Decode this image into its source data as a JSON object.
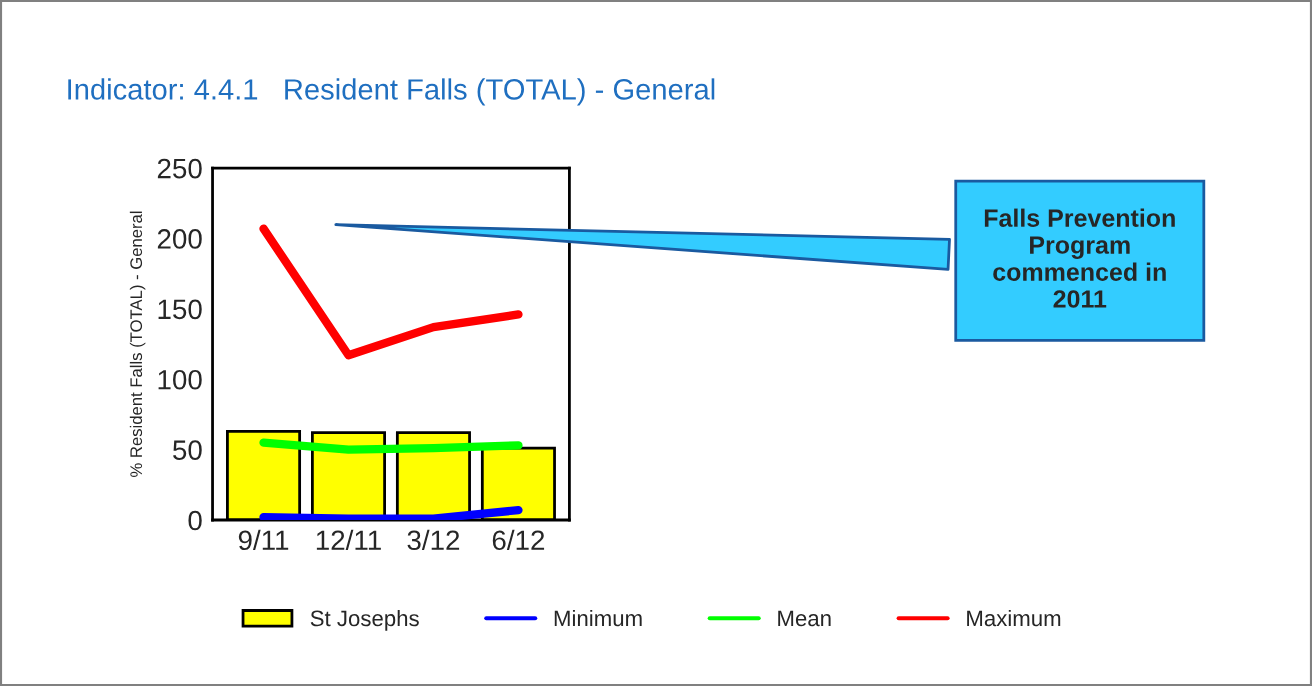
{
  "chart_data": {
    "type": "bar",
    "title": "Indicator: 4.4.1   Resident Falls (TOTAL) - General",
    "ylabel": "% Resident Falls (TOTAL) - General",
    "categories": [
      "9/11",
      "12/11",
      "3/12",
      "6/12"
    ],
    "series": [
      {
        "name": "St Josephs",
        "color": "#ffff00",
        "values": [
          63,
          62,
          62,
          51
        ]
      },
      {
        "name": "Minimum",
        "type": "line",
        "color": "#0000ff",
        "values": [
          2,
          1,
          1,
          7
        ]
      },
      {
        "name": "Mean",
        "type": "line",
        "color": "#00ff00",
        "values": [
          55,
          50,
          51,
          53
        ]
      },
      {
        "name": "Maximum",
        "type": "line",
        "color": "#ff0000",
        "values": [
          207,
          117,
          137,
          146
        ]
      }
    ],
    "ylim": [
      0,
      250
    ],
    "yticks": [
      0,
      50,
      100,
      150,
      200,
      250
    ],
    "annotations": [
      "Falls Prevention\nProgram\ncommenced in\n2011"
    ],
    "grid": false,
    "legend": "bottom"
  }
}
